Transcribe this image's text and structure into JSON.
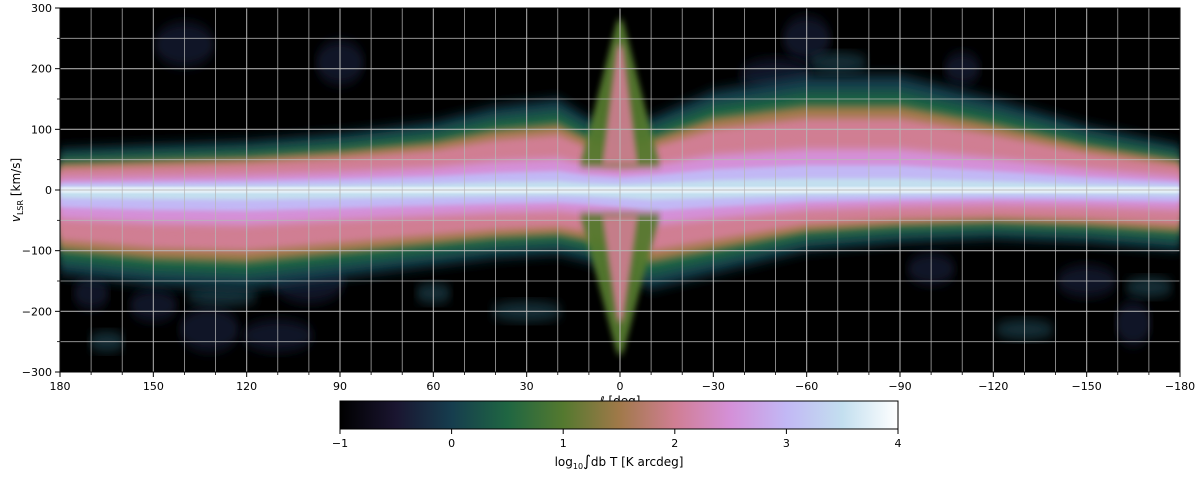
{
  "chart_data": {
    "type": "heatmap",
    "title": "",
    "xlabel_parts": [
      "ℓ",
      " [deg]"
    ],
    "ylabel_parts": [
      "v",
      "LSR",
      " [km/s]"
    ],
    "xlim": [
      180,
      -180
    ],
    "ylim": [
      -300,
      300
    ],
    "x_ticks": [
      180,
      150,
      120,
      90,
      60,
      30,
      0,
      -30,
      -60,
      -90,
      -120,
      -150,
      -180
    ],
    "x_tick_labels": [
      "180",
      "150",
      "120",
      "90",
      "60",
      "30",
      "0",
      "−30",
      "−60",
      "−90",
      "−120",
      "−150",
      "−180"
    ],
    "y_ticks": [
      300,
      200,
      100,
      0,
      -100,
      -200,
      -300
    ],
    "y_tick_labels": [
      "300",
      "200",
      "100",
      "0",
      "−100",
      "−200",
      "−300"
    ],
    "grid": true,
    "grid_color": "#b8b8b8",
    "colormap": "cubehelix",
    "colormap_stops": [
      "#000000",
      "#1a1530",
      "#163d4e",
      "#1f6642",
      "#54792f",
      "#a07949",
      "#d07e93",
      "#d490d8",
      "#c2b8f5",
      "#c3dfef",
      "#ffffff"
    ],
    "colorbar": {
      "location": "bottom",
      "range": [
        -1,
        4
      ],
      "ticks": [
        -1,
        0,
        1,
        2,
        3,
        4
      ],
      "tick_labels": [
        "−1",
        "0",
        "1",
        "2",
        "3",
        "4"
      ],
      "label_parts": [
        "log",
        "10",
        "∫",
        "db T [K arcdeg]"
      ]
    },
    "features": {
      "disk_halfwidth_at_l": {
        "l": [
          180,
          150,
          120,
          90,
          60,
          40,
          20,
          10,
          0,
          -10,
          -30,
          -60,
          -90,
          -120,
          -150,
          -180
        ],
        "upper_kms": [
          40,
          45,
          50,
          60,
          75,
          95,
          105,
          80,
          70,
          80,
          115,
          135,
          135,
          105,
          70,
          45
        ],
        "lower_kms": [
          -95,
          -110,
          -115,
          -100,
          -85,
          -75,
          -70,
          -80,
          -95,
          -115,
          -95,
          -65,
          -55,
          -50,
          -55,
          -65
        ]
      },
      "central_ridge_kms": 0,
      "galactic_center_spike": {
        "l": 0,
        "v_top": 280,
        "v_bottom": -270
      }
    }
  }
}
